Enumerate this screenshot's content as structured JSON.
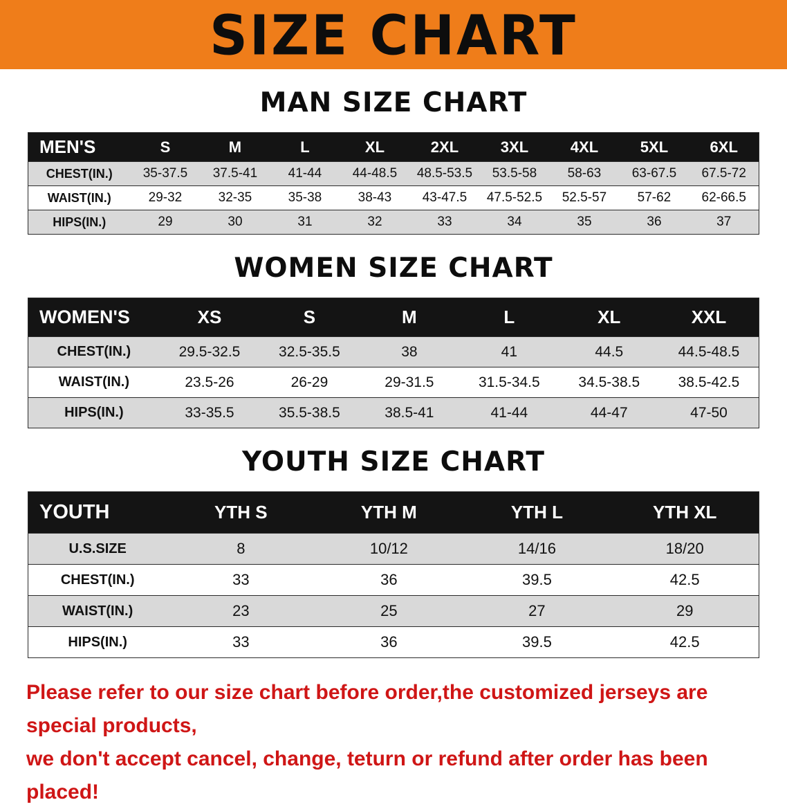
{
  "banner": {
    "title": "SIZE CHART"
  },
  "colors": {
    "banner_bg": "#ef7d1a",
    "header_bg": "#141414",
    "header_text": "#ffffff",
    "row_alt": "#d9d9d9",
    "footer_text": "#cf1616"
  },
  "sections": [
    {
      "heading": "MAN SIZE CHART",
      "table": {
        "header_label": "MEN'S",
        "columns": [
          "S",
          "M",
          "L",
          "XL",
          "2XL",
          "3XL",
          "4XL",
          "5XL",
          "6XL"
        ],
        "rows": [
          {
            "label": "CHEST(IN.)",
            "values": [
              "35-37.5",
              "37.5-41",
              "41-44",
              "44-48.5",
              "48.5-53.5",
              "53.5-58",
              "58-63",
              "63-67.5",
              "67.5-72"
            ]
          },
          {
            "label": "WAIST(IN.)",
            "values": [
              "29-32",
              "32-35",
              "35-38",
              "38-43",
              "43-47.5",
              "47.5-52.5",
              "52.5-57",
              "57-62",
              "62-66.5"
            ]
          },
          {
            "label": "HIPS(IN.)",
            "values": [
              "29",
              "30",
              "31",
              "32",
              "33",
              "34",
              "35",
              "36",
              "37"
            ]
          }
        ]
      }
    },
    {
      "heading": "WOMEN SIZE CHART",
      "table": {
        "header_label": "WOMEN'S",
        "columns": [
          "XS",
          "S",
          "M",
          "L",
          "XL",
          "XXL"
        ],
        "rows": [
          {
            "label": "CHEST(IN.)",
            "values": [
              "29.5-32.5",
              "32.5-35.5",
              "38",
              "41",
              "44.5",
              "44.5-48.5"
            ]
          },
          {
            "label": "WAIST(IN.)",
            "values": [
              "23.5-26",
              "26-29",
              "29-31.5",
              "31.5-34.5",
              "34.5-38.5",
              "38.5-42.5"
            ]
          },
          {
            "label": "HIPS(IN.)",
            "values": [
              "33-35.5",
              "35.5-38.5",
              "38.5-41",
              "41-44",
              "44-47",
              "47-50"
            ]
          }
        ]
      }
    },
    {
      "heading": "YOUTH SIZE CHART",
      "table": {
        "header_label": "YOUTH",
        "columns": [
          "YTH S",
          "YTH M",
          "YTH L",
          "YTH XL"
        ],
        "rows": [
          {
            "label": "U.S.SIZE",
            "values": [
              "8",
              "10/12",
              "14/16",
              "18/20"
            ]
          },
          {
            "label": "CHEST(IN.)",
            "values": [
              "33",
              "36",
              "39.5",
              "42.5"
            ]
          },
          {
            "label": "WAIST(IN.)",
            "values": [
              "23",
              "25",
              "27",
              "29"
            ]
          },
          {
            "label": "HIPS(IN.)",
            "values": [
              "33",
              "36",
              "39.5",
              "42.5"
            ]
          }
        ]
      }
    }
  ],
  "footer": {
    "line1": "Please refer to our size chart before order,the customized jerseys are special products,",
    "line2": "we don't accept cancel, change, teturn or refund after order has been placed!"
  }
}
